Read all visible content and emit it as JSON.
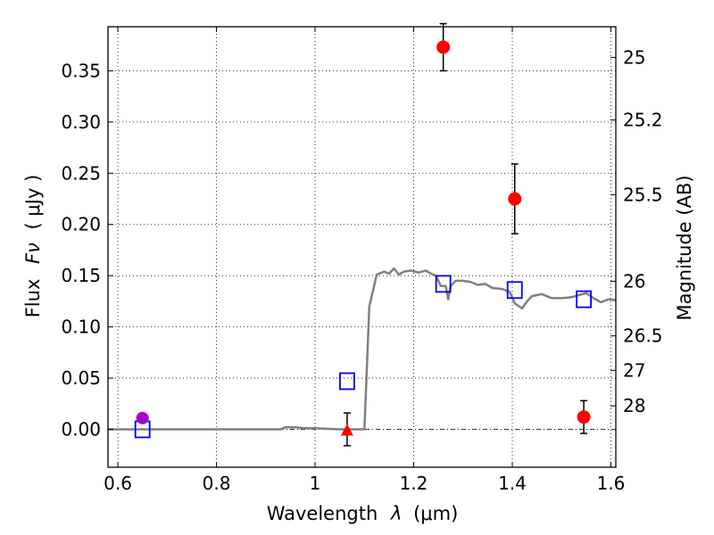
{
  "chart_data": {
    "type": "scatter",
    "xlabel_text": "Wavelength",
    "xlabel_symbol": "λ",
    "xlabel_unit": "(μm)",
    "ylabel_text": "Flux",
    "ylabel_symbol": "Fν",
    "ylabel_unit": "( μJy )",
    "y2label": "Magnitude (AB)",
    "xlim": [
      0.58,
      1.61
    ],
    "ylim": [
      -0.037,
      0.393
    ],
    "x_ticks": [
      {
        "value": 0.6,
        "label": "0.6"
      },
      {
        "value": 0.8,
        "label": "0.8"
      },
      {
        "value": 1.0,
        "label": "1"
      },
      {
        "value": 1.2,
        "label": "1.2"
      },
      {
        "value": 1.4,
        "label": "1.4"
      },
      {
        "value": 1.6,
        "label": "1.6"
      }
    ],
    "y_ticks": [
      {
        "value": 0.0,
        "label": "0.00"
      },
      {
        "value": 0.05,
        "label": "0.05"
      },
      {
        "value": 0.1,
        "label": "0.10"
      },
      {
        "value": 0.15,
        "label": "0.15"
      },
      {
        "value": 0.2,
        "label": "0.20"
      },
      {
        "value": 0.25,
        "label": "0.25"
      },
      {
        "value": 0.3,
        "label": "0.30"
      },
      {
        "value": 0.35,
        "label": "0.35"
      }
    ],
    "mag_ticks": [
      {
        "mag": 25.0,
        "label": "25"
      },
      {
        "mag": 25.2,
        "label": "25.2"
      },
      {
        "mag": 25.5,
        "label": "25.5"
      },
      {
        "mag": 26.0,
        "label": "26"
      },
      {
        "mag": 26.5,
        "label": "26.5"
      },
      {
        "mag": 27.0,
        "label": "27"
      },
      {
        "mag": 28.0,
        "label": "28"
      }
    ],
    "model_sed": {
      "color": "#808080",
      "x": [
        0.58,
        0.7,
        0.8,
        0.9,
        0.93,
        0.94,
        0.96,
        0.98,
        1.0,
        1.05,
        1.08,
        1.1,
        1.11,
        1.125,
        1.14,
        1.15,
        1.16,
        1.17,
        1.18,
        1.195,
        1.21,
        1.225,
        1.235,
        1.245,
        1.255,
        1.265,
        1.27,
        1.275,
        1.285,
        1.3,
        1.315,
        1.33,
        1.345,
        1.36,
        1.38,
        1.395,
        1.405,
        1.42,
        1.43,
        1.44,
        1.46,
        1.48,
        1.5,
        1.52,
        1.535,
        1.55,
        1.565,
        1.58,
        1.595,
        1.61
      ],
      "y": [
        0.0,
        0.0,
        0.0,
        0.0,
        0.0,
        0.002,
        0.002,
        0.001,
        0.001,
        0.0,
        0.0,
        0.0,
        0.12,
        0.151,
        0.154,
        0.152,
        0.157,
        0.151,
        0.154,
        0.155,
        0.153,
        0.155,
        0.152,
        0.15,
        0.14,
        0.14,
        0.127,
        0.14,
        0.145,
        0.145,
        0.144,
        0.141,
        0.142,
        0.138,
        0.137,
        0.134,
        0.123,
        0.118,
        0.125,
        0.13,
        0.132,
        0.128,
        0.128,
        0.129,
        0.131,
        0.133,
        0.128,
        0.124,
        0.127,
        0.126
      ]
    },
    "model_photometry": {
      "color": "#0000ff",
      "marker": "square",
      "x": [
        0.65,
        1.065,
        1.26,
        1.405,
        1.545
      ],
      "y": [
        0.0,
        0.047,
        0.142,
        0.136,
        0.127
      ]
    },
    "observed_detections": {
      "color": "#ff0000",
      "marker": "circle",
      "x": [
        1.26,
        1.405,
        1.545
      ],
      "y": [
        0.373,
        0.225,
        0.012
      ],
      "yerr": [
        0.023,
        0.034,
        0.016
      ]
    },
    "observed_upper_limit": {
      "color": "#ff0000",
      "marker": "triangle",
      "x": [
        1.065
      ],
      "y": [
        0.0
      ],
      "yerr": [
        0.016
      ]
    },
    "observed_optical": {
      "color": "#aa00cc",
      "marker": "circle",
      "x": [
        0.65
      ],
      "y": [
        0.011
      ],
      "yerr": [
        0.004
      ]
    }
  }
}
